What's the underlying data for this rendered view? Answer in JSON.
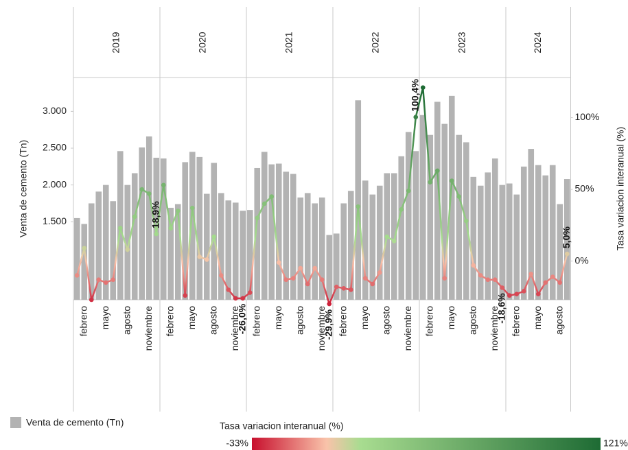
{
  "chart_data": {
    "type": "bar_line",
    "years": [
      "2019",
      "2020",
      "2021",
      "2022",
      "2023",
      "2024"
    ],
    "categories": [
      null,
      "febrero",
      null,
      null,
      "mayo",
      null,
      null,
      "agosto",
      null,
      null,
      "noviembre",
      null,
      null,
      "febrero",
      null,
      null,
      "mayo",
      null,
      null,
      "agosto",
      null,
      null,
      "noviembre",
      null,
      null,
      "febrero",
      null,
      null,
      "mayo",
      null,
      null,
      "agosto",
      null,
      null,
      "noviembre",
      null,
      null,
      "febrero",
      null,
      null,
      "mayo",
      null,
      null,
      "agosto",
      null,
      null,
      "noviembre",
      null,
      null,
      "febrero",
      null,
      null,
      "mayo",
      null,
      null,
      "agosto",
      null,
      null,
      "noviembre",
      null,
      null,
      "febrero",
      null,
      null,
      "mayo",
      null,
      null,
      "agosto",
      null
    ],
    "ylabel": "Venta de cemento (Tn)",
    "y2label": "Tasa variacion interanual (%)",
    "ylim": [
      440,
      3460
    ],
    "yticks": [
      {
        "value": 1500,
        "label": "1.500"
      },
      {
        "value": 2000,
        "label": "2.000"
      },
      {
        "value": 2500,
        "label": "2.500"
      },
      {
        "value": 3000,
        "label": "3.000"
      }
    ],
    "y2lim": [
      -27,
      128
    ],
    "y2ticks": [
      {
        "value": 0,
        "label": "0%"
      },
      {
        "value": 50,
        "label": "50%"
      },
      {
        "value": 100,
        "label": "100%"
      }
    ],
    "series": [
      {
        "name": "Venta de cemento (Tn)",
        "color": "#b3b3b3",
        "values": [
          1550,
          1470,
          1750,
          1910,
          2000,
          1780,
          2460,
          2000,
          2160,
          2510,
          2660,
          2370,
          2360,
          1690,
          1740,
          2310,
          2450,
          2380,
          1880,
          2300,
          1890,
          1790,
          1760,
          1650,
          1660,
          2230,
          2450,
          2280,
          2290,
          2180,
          2150,
          1830,
          1890,
          1750,
          1830,
          1320,
          1340,
          1750,
          1920,
          3150,
          2060,
          1870,
          1990,
          2160,
          2160,
          2390,
          2720,
          2460,
          2950,
          2680,
          3130,
          2830,
          3210,
          2680,
          2580,
          2110,
          1990,
          2170,
          2360,
          2000,
          2020,
          1870,
          2250,
          2490,
          2270,
          2130,
          2270,
          1740,
          2080
        ]
      },
      {
        "name": "Tasa variacion interanual (%)",
        "axis": "y2",
        "values": [
          -10,
          9,
          -27,
          -13,
          -15,
          -13,
          23,
          8,
          31,
          50,
          47,
          18.9,
          53,
          23,
          35,
          -24,
          37,
          3,
          1,
          17,
          -10,
          -20,
          -26,
          -26.0,
          -22,
          30,
          40,
          45,
          -1,
          -13,
          -12,
          -5,
          -16,
          -5,
          -13,
          -29.9,
          -18,
          -19,
          -20,
          38,
          -12,
          -16,
          -8,
          17,
          14,
          36,
          49,
          100.4,
          121,
          55,
          63,
          -12,
          56,
          45,
          28,
          -3,
          -10,
          -13,
          -13,
          -18.6,
          -24,
          -23,
          -21,
          -9,
          -23,
          -15,
          -11,
          -15,
          5.0
        ],
        "value_labels": [
          null,
          null,
          null,
          null,
          null,
          null,
          null,
          null,
          null,
          null,
          null,
          "18,9%",
          null,
          null,
          null,
          null,
          null,
          null,
          null,
          null,
          null,
          null,
          null,
          "-26,0%",
          null,
          null,
          null,
          null,
          null,
          null,
          null,
          null,
          null,
          null,
          null,
          "-29,9%",
          null,
          null,
          null,
          null,
          null,
          null,
          null,
          null,
          null,
          null,
          null,
          "100,4%",
          null,
          null,
          null,
          null,
          null,
          null,
          null,
          null,
          null,
          null,
          null,
          "-18,6%",
          null,
          null,
          null,
          null,
          null,
          null,
          null,
          null,
          "5,0%"
        ]
      }
    ],
    "color_scale": {
      "min": {
        "value": -33,
        "label": "-33%"
      },
      "max": {
        "value": 121,
        "label": "121%"
      },
      "colors": [
        "#c8102e",
        "#f9c3aa",
        "#a8dc90",
        "#1e6b34"
      ]
    }
  }
}
